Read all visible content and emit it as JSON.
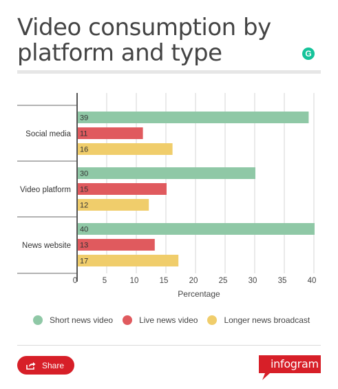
{
  "title": "Video consumption by platform and type",
  "chart_data": {
    "type": "bar",
    "orientation": "horizontal",
    "categories": [
      "Social media",
      "Video platform",
      "News website"
    ],
    "series": [
      {
        "name": "Short news video",
        "color": "#8fc8a6",
        "values": [
          39,
          30,
          40
        ]
      },
      {
        "name": "Live news video",
        "color": "#e05a5e",
        "values": [
          11,
          15,
          13
        ]
      },
      {
        "name": "Longer news broadcast",
        "color": "#f0cd6b",
        "values": [
          16,
          12,
          17
        ]
      }
    ],
    "xlabel": "Percentage",
    "ylabel": "",
    "xlim": [
      0,
      40
    ],
    "xticks": [
      0,
      5,
      10,
      15,
      20,
      25,
      30,
      35,
      40
    ],
    "grid": true,
    "legend": "bottom"
  },
  "footer": {
    "share_label": "Share",
    "brand": "infogram"
  },
  "icons": {
    "grammarly": "grammarly-icon",
    "share": "share-icon"
  }
}
